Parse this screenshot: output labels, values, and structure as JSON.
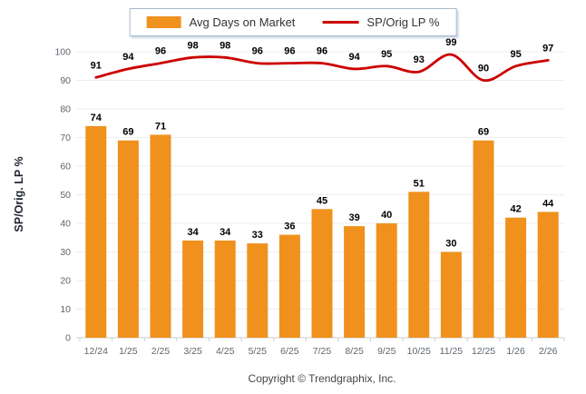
{
  "chart_data": {
    "type": "bar+line combo",
    "categories": [
      "12/24",
      "1/25",
      "2/25",
      "3/25",
      "4/25",
      "5/25",
      "6/25",
      "7/25",
      "8/25",
      "9/25",
      "10/25",
      "11/25",
      "12/25",
      "1/26",
      "2/26"
    ],
    "series": [
      {
        "name": "Avg Days on Market",
        "type": "bar",
        "color": "#F0911E",
        "values": [
          74,
          69,
          71,
          34,
          34,
          33,
          36,
          45,
          39,
          40,
          51,
          30,
          69,
          42,
          44
        ]
      },
      {
        "name": "SP/Orig LP %",
        "type": "line",
        "color": "#CC0000",
        "values": [
          91,
          94,
          96,
          98,
          98,
          96,
          96,
          96,
          94,
          95,
          93,
          99,
          90,
          95,
          97
        ]
      }
    ],
    "title": "",
    "xlabel": "",
    "ylabel": "SP/Orig. LP %",
    "ylim": [
      0,
      100
    ],
    "ytick_step": 10,
    "grid": true,
    "legend_position": "top-center",
    "data_labels": true
  },
  "footer": {
    "copyright": "Copyright © Trendgraphix, Inc."
  },
  "colors": {
    "bar": "#F0911E",
    "line": "#CC0000",
    "grid": "#ededed",
    "axis": "#c9ced4",
    "tick_label": "#5c6670",
    "data_label": "#000000"
  }
}
